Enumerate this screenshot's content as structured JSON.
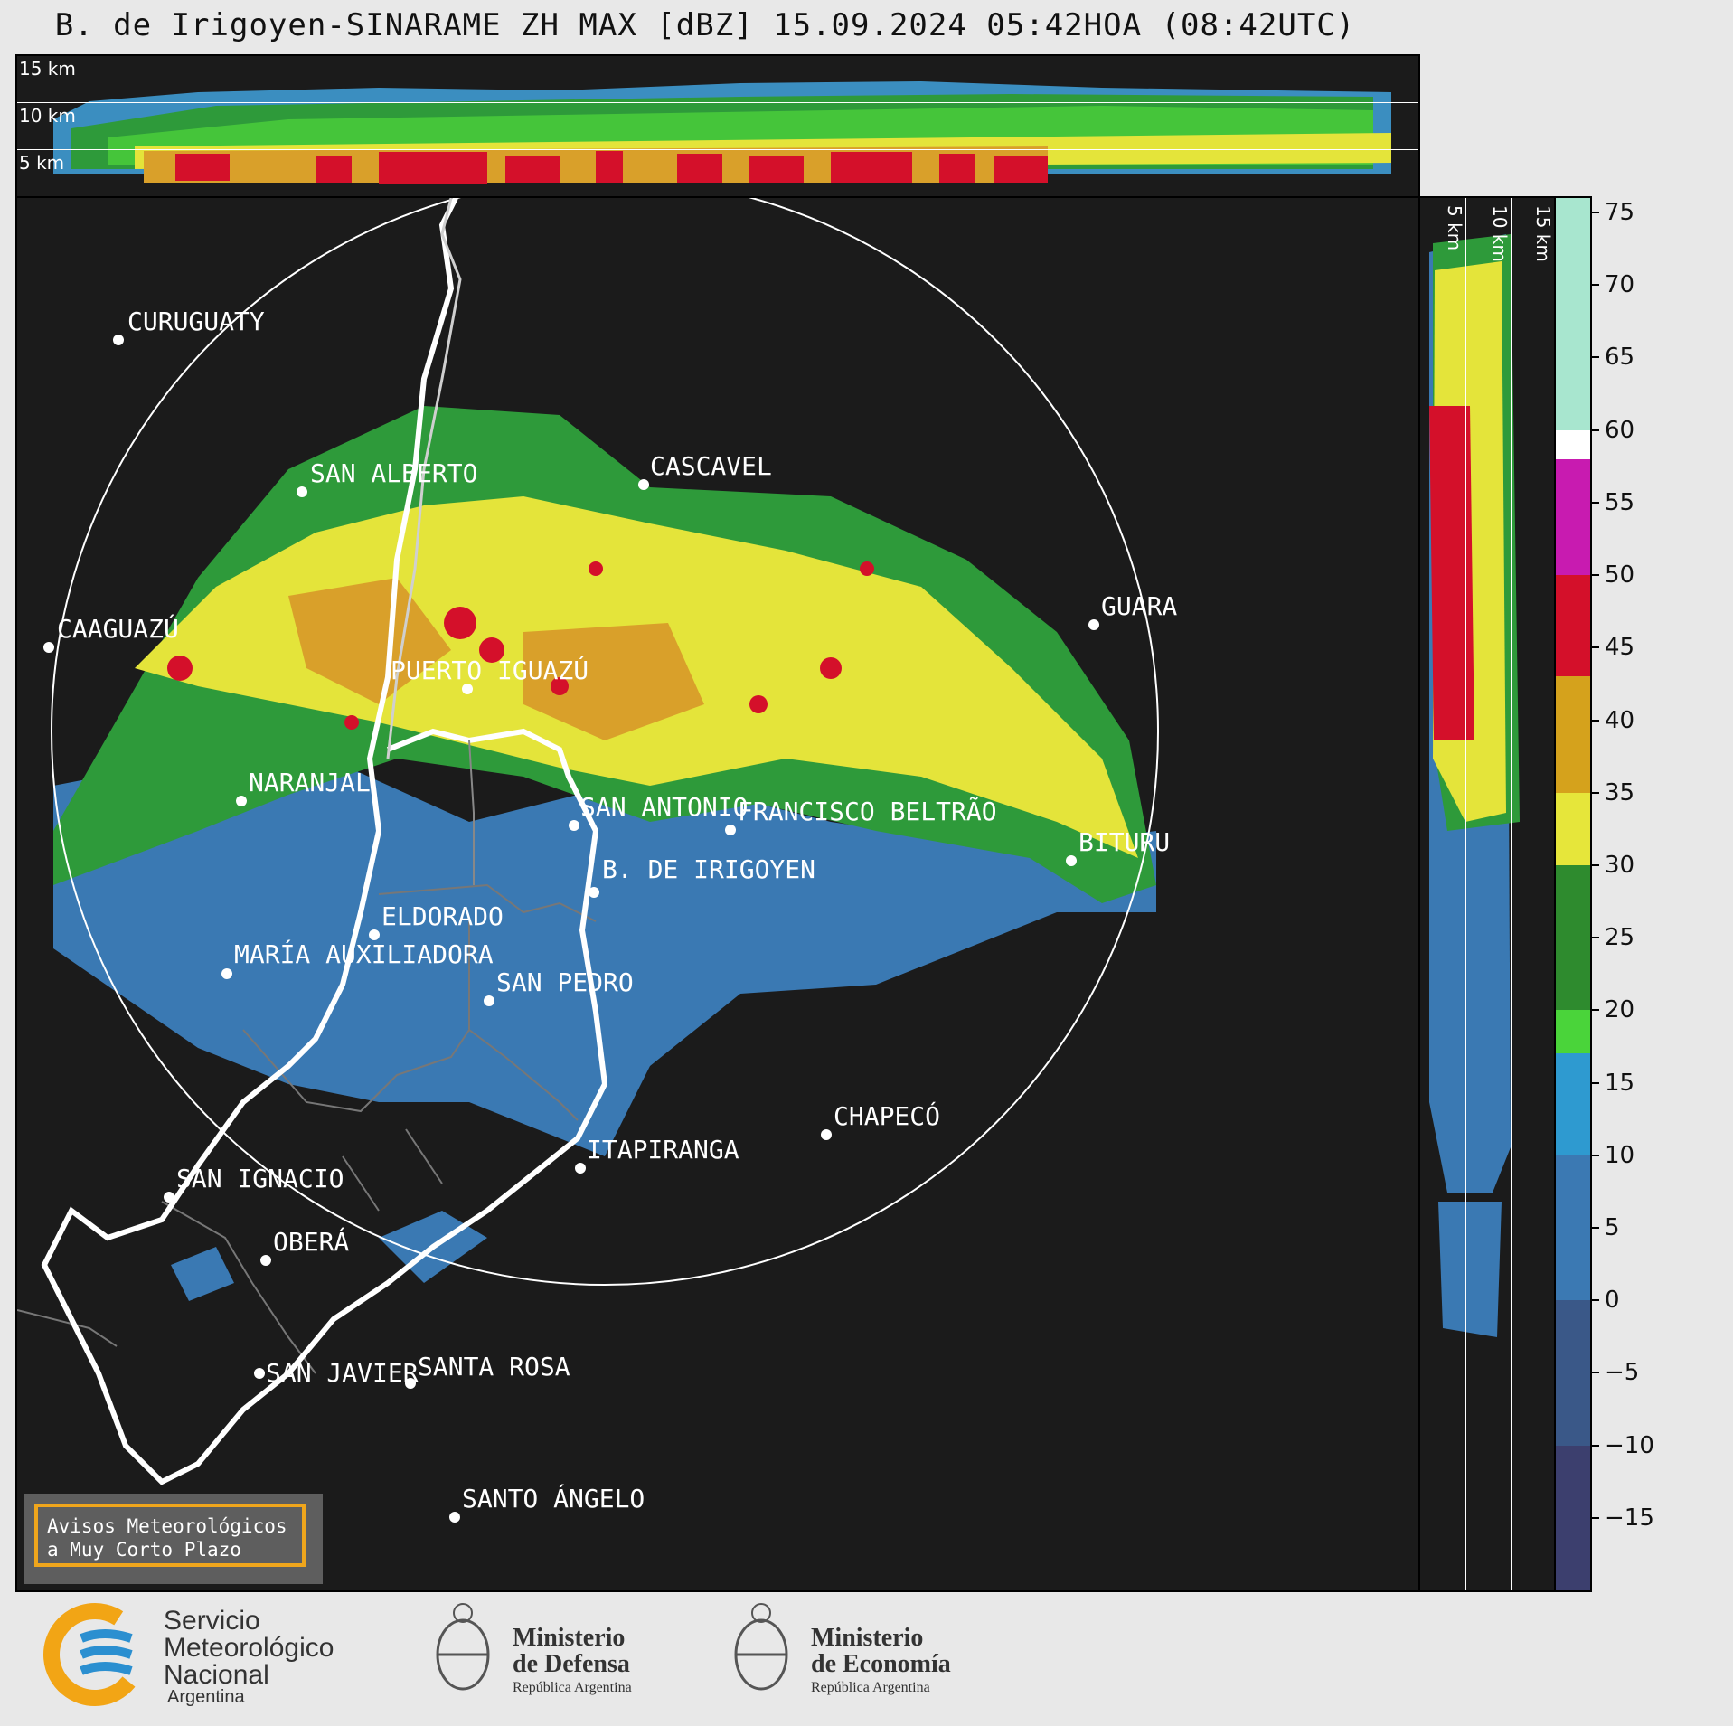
{
  "title": "B. de Irigoyen-SINARAME ZH MAX [dBZ] 15.09.2024 05:42HOA (08:42UTC)",
  "profile_top": {
    "labels": [
      "15 km",
      "10 km",
      "5 km"
    ]
  },
  "profile_right": {
    "labels": [
      "5 km",
      "10 km",
      "15 km"
    ]
  },
  "colorbar": {
    "ticks": [
      "75",
      "70",
      "65",
      "60",
      "55",
      "50",
      "45",
      "40",
      "35",
      "30",
      "25",
      "20",
      "15",
      "10",
      "5",
      "0",
      "−5",
      "−10",
      "−15"
    ],
    "bands": [
      {
        "from": 60,
        "to": 76,
        "color": "#a8e6cf"
      },
      {
        "from": 58,
        "to": 60,
        "color": "#ffffff"
      },
      {
        "from": 50,
        "to": 58,
        "color": "#c81bb0"
      },
      {
        "from": 43,
        "to": 50,
        "color": "#d4102a"
      },
      {
        "from": 35,
        "to": 43,
        "color": "#d5a21c"
      },
      {
        "from": 30,
        "to": 35,
        "color": "#e6e63a"
      },
      {
        "from": 20,
        "to": 30,
        "color": "#2e8b2e"
      },
      {
        "from": 17,
        "to": 20,
        "color": "#4ad43a"
      },
      {
        "from": 10,
        "to": 17,
        "color": "#2e9ad0"
      },
      {
        "from": 0,
        "to": 10,
        "color": "#3b79b3"
      },
      {
        "from": -10,
        "to": 0,
        "color": "#3a5888"
      },
      {
        "from": -20,
        "to": -10,
        "color": "#3c3f6e"
      }
    ]
  },
  "cities": [
    "CURUGUATY",
    "SAN ALBERTO",
    "CASCAVEL",
    "CAAGUAZÚ",
    "GUARA",
    "PUERTO IGUAZÚ",
    "NARANJAL",
    "SAN ANTONIO",
    "FRANCISCO BELTRÃO",
    "BITURU",
    "B. DE IRIGOYEN",
    "ELDORADO",
    "MARÍA AUXILIADORA",
    "SAN PEDRO",
    "CHAPECÓ",
    "ITAPIRANGA",
    "SAN IGNACIO",
    "OBERÁ",
    "SAN JAVIER",
    "SANTA ROSA",
    "SANTO ÁNGELO"
  ],
  "warning": {
    "line1": "Avisos Meteorológicos",
    "line2": "a Muy Corto Plazo"
  },
  "footer": {
    "smn": {
      "line1": "Servicio",
      "line2": "Meteorológico",
      "line3": "Nacional",
      "line4": "Argentina"
    },
    "defensa": {
      "line1": "Ministerio",
      "line2": "de Defensa",
      "line3": "República Argentina"
    },
    "economia": {
      "line1": "Ministerio",
      "line2": "de Economía",
      "line3": "República Argentina"
    }
  }
}
